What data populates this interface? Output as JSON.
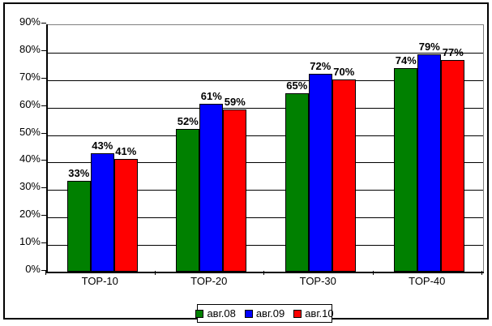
{
  "chart_data": {
    "type": "bar",
    "title": "",
    "categories": [
      "TOP-10",
      "TOP-20",
      "TOP-30",
      "TOP-40"
    ],
    "series": [
      {
        "name": "авг.08",
        "color": "#008000",
        "values": [
          33,
          52,
          65,
          74
        ]
      },
      {
        "name": "авг.09",
        "color": "#0000ff",
        "values": [
          43,
          61,
          72,
          79
        ]
      },
      {
        "name": "авг.10",
        "color": "#ff0000",
        "values": [
          41,
          59,
          70,
          77
        ]
      }
    ],
    "data_label_suffix": "%",
    "data_labels_shown": true,
    "y_axis": {
      "min": 0,
      "max": 90,
      "step": 10,
      "tick_labels": [
        "0%",
        "10%",
        "20%",
        "30%",
        "40%",
        "50%",
        "60%",
        "70%",
        "80%",
        "90%"
      ]
    },
    "x_axis": {
      "tick_labels": [
        "TOP-10",
        "TOP-20",
        "TOP-30",
        "TOP-40"
      ]
    },
    "grid": true,
    "legend_position": "bottom",
    "style": {
      "frame_border_color": "#000000",
      "plot_border_color": "#808080",
      "axis_color": "#000000",
      "gridline_color": "#000000",
      "bar_border_color": "#000000",
      "background_color": "#ffffff"
    }
  }
}
